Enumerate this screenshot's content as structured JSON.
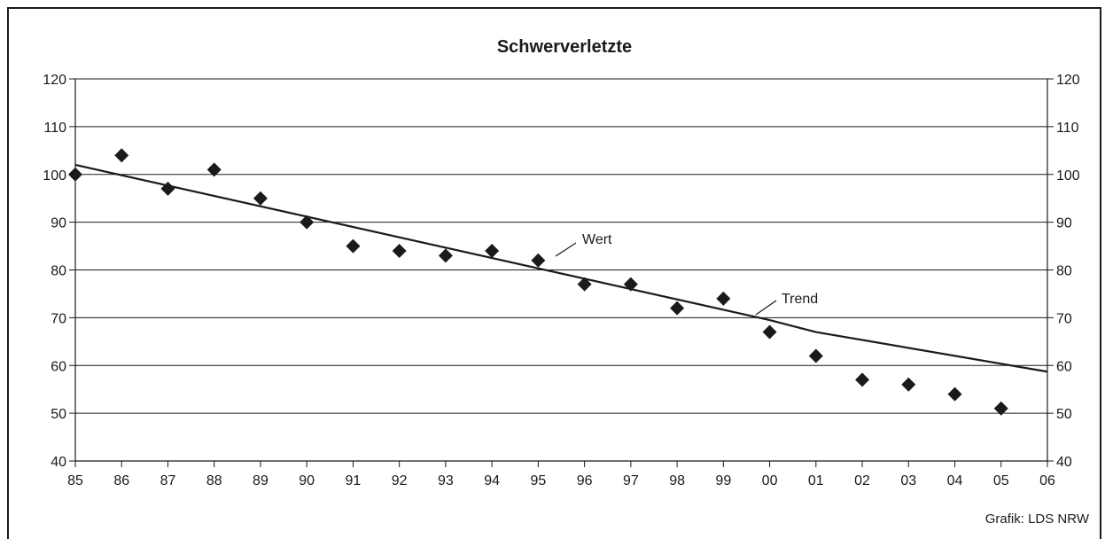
{
  "chart_data": {
    "type": "scatter",
    "title": "Schwerverletzte",
    "xlabel": "",
    "ylabel": "",
    "categories": [
      "85",
      "86",
      "87",
      "88",
      "89",
      "90",
      "91",
      "92",
      "93",
      "94",
      "95",
      "96",
      "97",
      "98",
      "99",
      "00",
      "01",
      "02",
      "03",
      "04",
      "05",
      "06"
    ],
    "ylim": [
      40,
      120
    ],
    "yticks": [
      40,
      50,
      60,
      70,
      80,
      90,
      100,
      110,
      120
    ],
    "grid": true,
    "series": [
      {
        "name": "Wert",
        "type": "scatter",
        "marker": "diamond",
        "values": [
          100,
          104,
          97,
          101,
          95,
          90,
          85,
          84,
          83,
          84,
          82,
          77,
          77,
          72,
          74,
          67,
          62,
          57,
          56,
          54,
          51
        ]
      },
      {
        "name": "Trend",
        "type": "line",
        "points": [
          [
            0,
            102
          ],
          [
            15,
            69.5
          ],
          [
            16,
            67
          ],
          [
            21,
            58.7
          ]
        ]
      }
    ],
    "annotations": [
      {
        "text": "Wert",
        "series": "Wert"
      },
      {
        "text": "Trend",
        "series": "Trend"
      }
    ]
  },
  "source": "Grafik: LDS NRW",
  "colors": {
    "axis": "#1a1a1a",
    "marker": "#1a1a1a",
    "grid": "#1a1a1a"
  }
}
